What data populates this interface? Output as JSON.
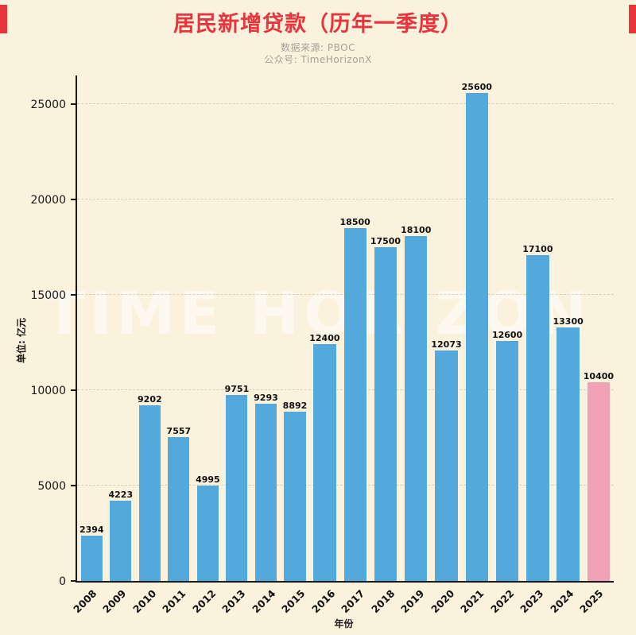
{
  "chart_data": {
    "type": "bar",
    "title": "居民新增贷款（历年一季度）",
    "source_line": "数据来源: PBOC",
    "account_line": "公众号: TimeHorizonX",
    "watermark": "TIME HORIZON",
    "xlabel": "年份",
    "ylabel": "单位: 亿元",
    "categories": [
      "2008",
      "2009",
      "2010",
      "2011",
      "2012",
      "2013",
      "2014",
      "2015",
      "2016",
      "2017",
      "2018",
      "2019",
      "2020",
      "2021",
      "2022",
      "2023",
      "2024",
      "2025"
    ],
    "values": [
      2394,
      4223,
      9202,
      7557,
      4995,
      9751,
      9293,
      8892,
      12400,
      18500,
      17500,
      18100,
      12073,
      25600,
      12600,
      17100,
      13300,
      10400
    ],
    "ylim": [
      0,
      26500
    ],
    "yticks": [
      0,
      5000,
      10000,
      15000,
      20000,
      25000
    ],
    "grid": "horizontal dashed",
    "legend": "none",
    "bar_color": "#54A9DC",
    "highlight_index": 17,
    "highlight_color": "#F1A2B5",
    "title_color": "#E8343C",
    "background_color": "#FBF2DD"
  }
}
